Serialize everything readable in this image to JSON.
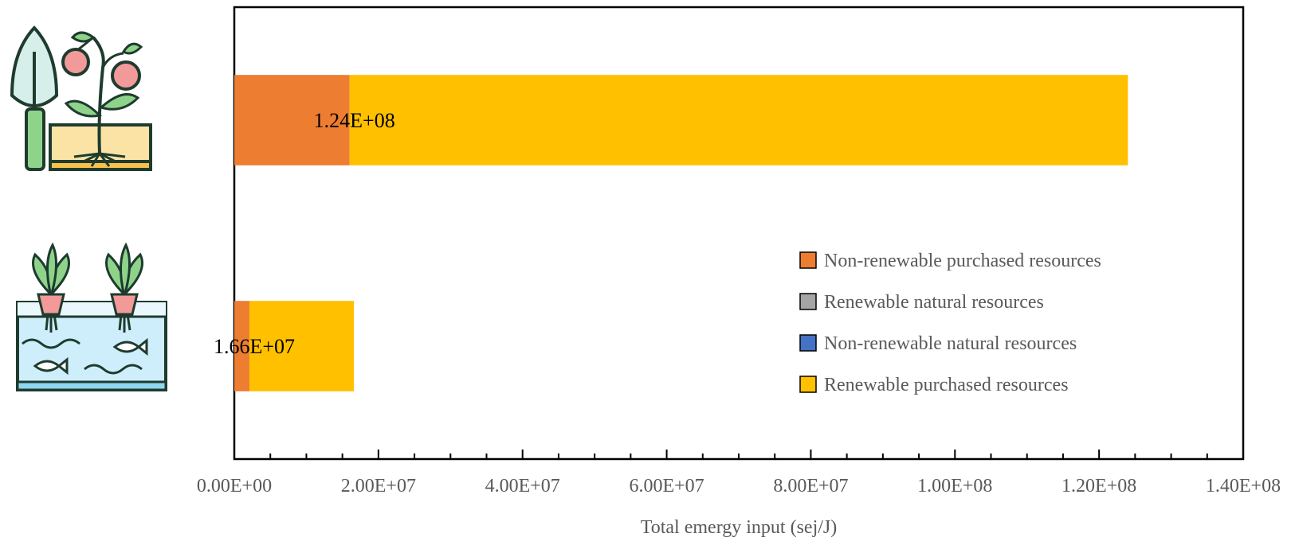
{
  "chart_data": {
    "type": "bar",
    "orientation": "horizontal",
    "stacked": true,
    "categories": [
      "soil-based farming",
      "aquaponics"
    ],
    "category_icons": [
      "shovel-and-tomato-plant-icon",
      "aquaponics-tank-with-plants-and-fish-icon"
    ],
    "series": [
      {
        "name": "Non-renewable purchased resources",
        "color": "#ED7D31",
        "values": [
          16000000,
          2100000
        ]
      },
      {
        "name": "Renewable natural resources",
        "color": "#A5A5A5",
        "values": [
          0,
          0
        ]
      },
      {
        "name": "Non-renewable natural resources",
        "color": "#4472C4",
        "values": [
          0,
          0
        ]
      },
      {
        "name": "Renewable purchased resources",
        "color": "#FFC000",
        "values": [
          108000000,
          14500000
        ]
      }
    ],
    "data_labels": [
      "1.24E+08",
      "1.66E+07"
    ],
    "totals": [
      124000000,
      16600000
    ],
    "xlabel": "Total emergy input (sej/J)",
    "xlim": [
      0,
      140000000
    ],
    "xticks": [
      0,
      20000000,
      40000000,
      60000000,
      80000000,
      100000000,
      120000000,
      140000000
    ],
    "xtick_labels": [
      "0.00E+00",
      "2.00E+07",
      "4.00E+07",
      "6.00E+07",
      "8.00E+07",
      "1.00E+08",
      "1.20E+08",
      "1.40E+08"
    ],
    "grid": false,
    "legend_position": "right"
  }
}
